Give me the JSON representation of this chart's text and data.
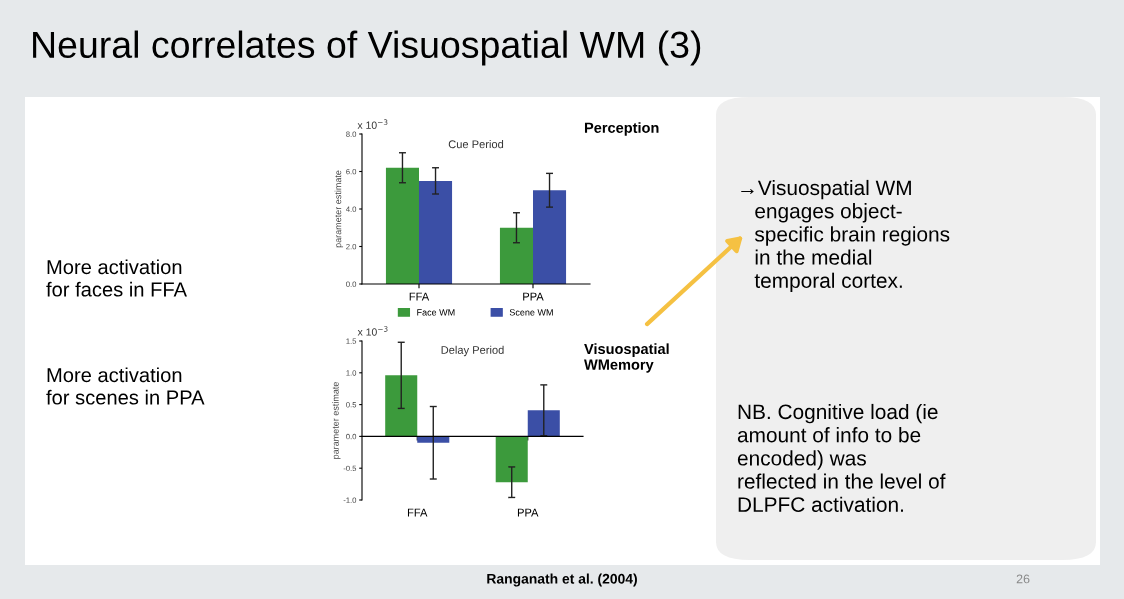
{
  "chart_data": [
    {
      "type": "other",
      "title": "Neural correlates of Visuospatial WM (3)",
      "annotations": [
        "More activation\nfor faces in FFA",
        "More activation\nfor scenes in PPA",
        "→Visuospatial WM\n   engages object-\n   specific brain regions\n   in the medial\n   temporal cortex.",
        "NB. Cognitive load (ie\namount of info to be\nencoded) was\nreflected in the level of\nDLPFC activation.",
        "Ranganath et al. (2004)",
        "26"
      ]
    },
    {
      "type": "bar",
      "title": "Cue Period",
      "ylabel": "parameter estimate",
      "categories": [
        "FFA",
        "PPA"
      ],
      "series": [
        {
          "name": "Face WM",
          "color": "#3c9a3c",
          "values": [
            6.2,
            3.0
          ],
          "errors": [
            0.8,
            0.8
          ]
        },
        {
          "name": "Scene WM",
          "color": "#3b4fa6",
          "values": [
            5.5,
            5.0
          ],
          "errors": [
            0.7,
            0.9
          ]
        }
      ],
      "ylim": [
        0,
        8
      ],
      "yticks": [
        {
          "value": 0,
          "label": "0.0"
        },
        {
          "value": 2,
          "label": "2.0"
        },
        {
          "value": 4,
          "label": "4.0"
        },
        {
          "value": 6,
          "label": "6.0"
        },
        {
          "value": 8,
          "label": "8.0"
        }
      ],
      "legend": "bottom",
      "annotations": [
        "x 10$^{−3}$",
        "Perception"
      ]
    },
    {
      "type": "bar",
      "title": "Delay Period",
      "ylabel": "parameter estimate",
      "categories": [
        "FFA",
        "PPA"
      ],
      "series": [
        {
          "color": "#3c9a3c",
          "values": [
            0.96,
            -0.72
          ],
          "errors": [
            0.52,
            0.24
          ]
        },
        {
          "color": "#3b4fa6",
          "values": [
            -0.1,
            0.41
          ],
          "errors": [
            0.57,
            0.4
          ]
        }
      ],
      "ylim": [
        -1.0,
        1.5
      ],
      "yticks": [
        {
          "value": -1.0,
          "label": "-1.0"
        },
        {
          "value": -0.5,
          "label": "-0.5"
        },
        {
          "value": 0,
          "label": "0.0"
        },
        {
          "value": 0.5,
          "label": "0.5"
        },
        {
          "value": 1.0,
          "label": "1.0"
        },
        {
          "value": 1.5,
          "label": "1.5"
        }
      ],
      "annotations": [
        "x 10$^{−3}$",
        "Visuospatial\nWMemory"
      ]
    }
  ]
}
